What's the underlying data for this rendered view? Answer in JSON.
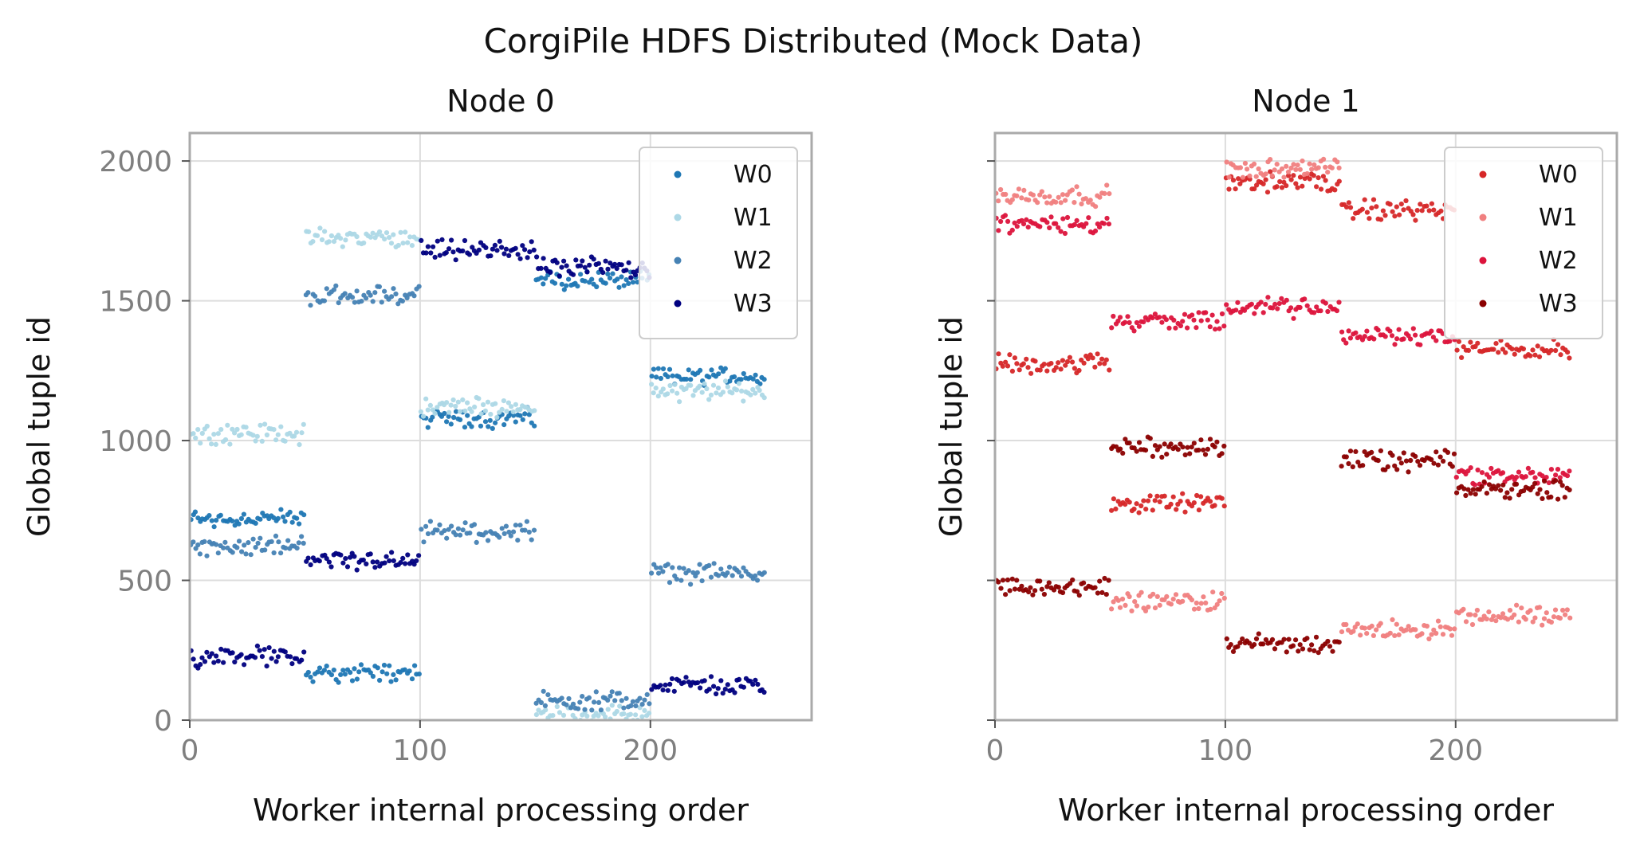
{
  "figure": {
    "title": "CorgiPile HDFS Distributed (Mock Data)"
  },
  "chart_data": [
    {
      "type": "scatter",
      "title": "Node 0",
      "xlabel": "Worker internal processing order",
      "ylabel": "Global tuple id",
      "xlim": [
        0,
        270
      ],
      "ylim": [
        0,
        2100
      ],
      "xticks": [
        "0",
        "100",
        "200"
      ],
      "yticks": [
        "0",
        "500",
        "1000",
        "1500",
        "2000"
      ],
      "grid": true,
      "legend": "top-right",
      "points_per_block": 50,
      "series": [
        {
          "name": "W0",
          "color": "#1f77b4",
          "blocks": [
            [
              0,
              720
            ],
            [
              50,
              170
            ],
            [
              100,
              1080
            ],
            [
              150,
              1575
            ],
            [
              200,
              1230
            ]
          ]
        },
        {
          "name": "W1",
          "color": "#add8e6",
          "blocks": [
            [
              0,
              1025
            ],
            [
              50,
              1725
            ],
            [
              100,
              1120
            ],
            [
              150,
              20
            ],
            [
              200,
              1175
            ]
          ]
        },
        {
          "name": "W2",
          "color": "#4682b4",
          "blocks": [
            [
              0,
              625
            ],
            [
              50,
              1520
            ],
            [
              100,
              675
            ],
            [
              150,
              70
            ],
            [
              200,
              525
            ]
          ]
        },
        {
          "name": "W3",
          "color": "#000080",
          "blocks": [
            [
              0,
              225
            ],
            [
              50,
              570
            ],
            [
              100,
              1680
            ],
            [
              150,
              1620
            ],
            [
              200,
              125
            ]
          ]
        }
      ]
    },
    {
      "type": "scatter",
      "title": "Node 1",
      "xlabel": "Worker internal processing order",
      "ylabel": "Global tuple id",
      "xlim": [
        0,
        270
      ],
      "ylim": [
        0,
        2100
      ],
      "xticks": [
        "0",
        "100",
        "200"
      ],
      "yticks": [],
      "grid": true,
      "legend": "top-right",
      "points_per_block": 50,
      "series": [
        {
          "name": "W0",
          "color": "#d62728",
          "blocks": [
            [
              0,
              1275
            ],
            [
              50,
              775
            ],
            [
              100,
              1925
            ],
            [
              150,
              1825
            ],
            [
              200,
              1325
            ]
          ]
        },
        {
          "name": "W1",
          "color": "#f08080",
          "blocks": [
            [
              0,
              1875
            ],
            [
              50,
              425
            ],
            [
              100,
              1975
            ],
            [
              150,
              325
            ],
            [
              200,
              375
            ]
          ]
        },
        {
          "name": "W2",
          "color": "#dc143c",
          "blocks": [
            [
              0,
              1775
            ],
            [
              50,
              1425
            ],
            [
              100,
              1475
            ],
            [
              150,
              1375
            ],
            [
              200,
              875
            ]
          ]
        },
        {
          "name": "W3",
          "color": "#8b0000",
          "blocks": [
            [
              0,
              475
            ],
            [
              50,
              975
            ],
            [
              100,
              275
            ],
            [
              150,
              925
            ],
            [
              200,
              825
            ]
          ]
        }
      ]
    }
  ]
}
